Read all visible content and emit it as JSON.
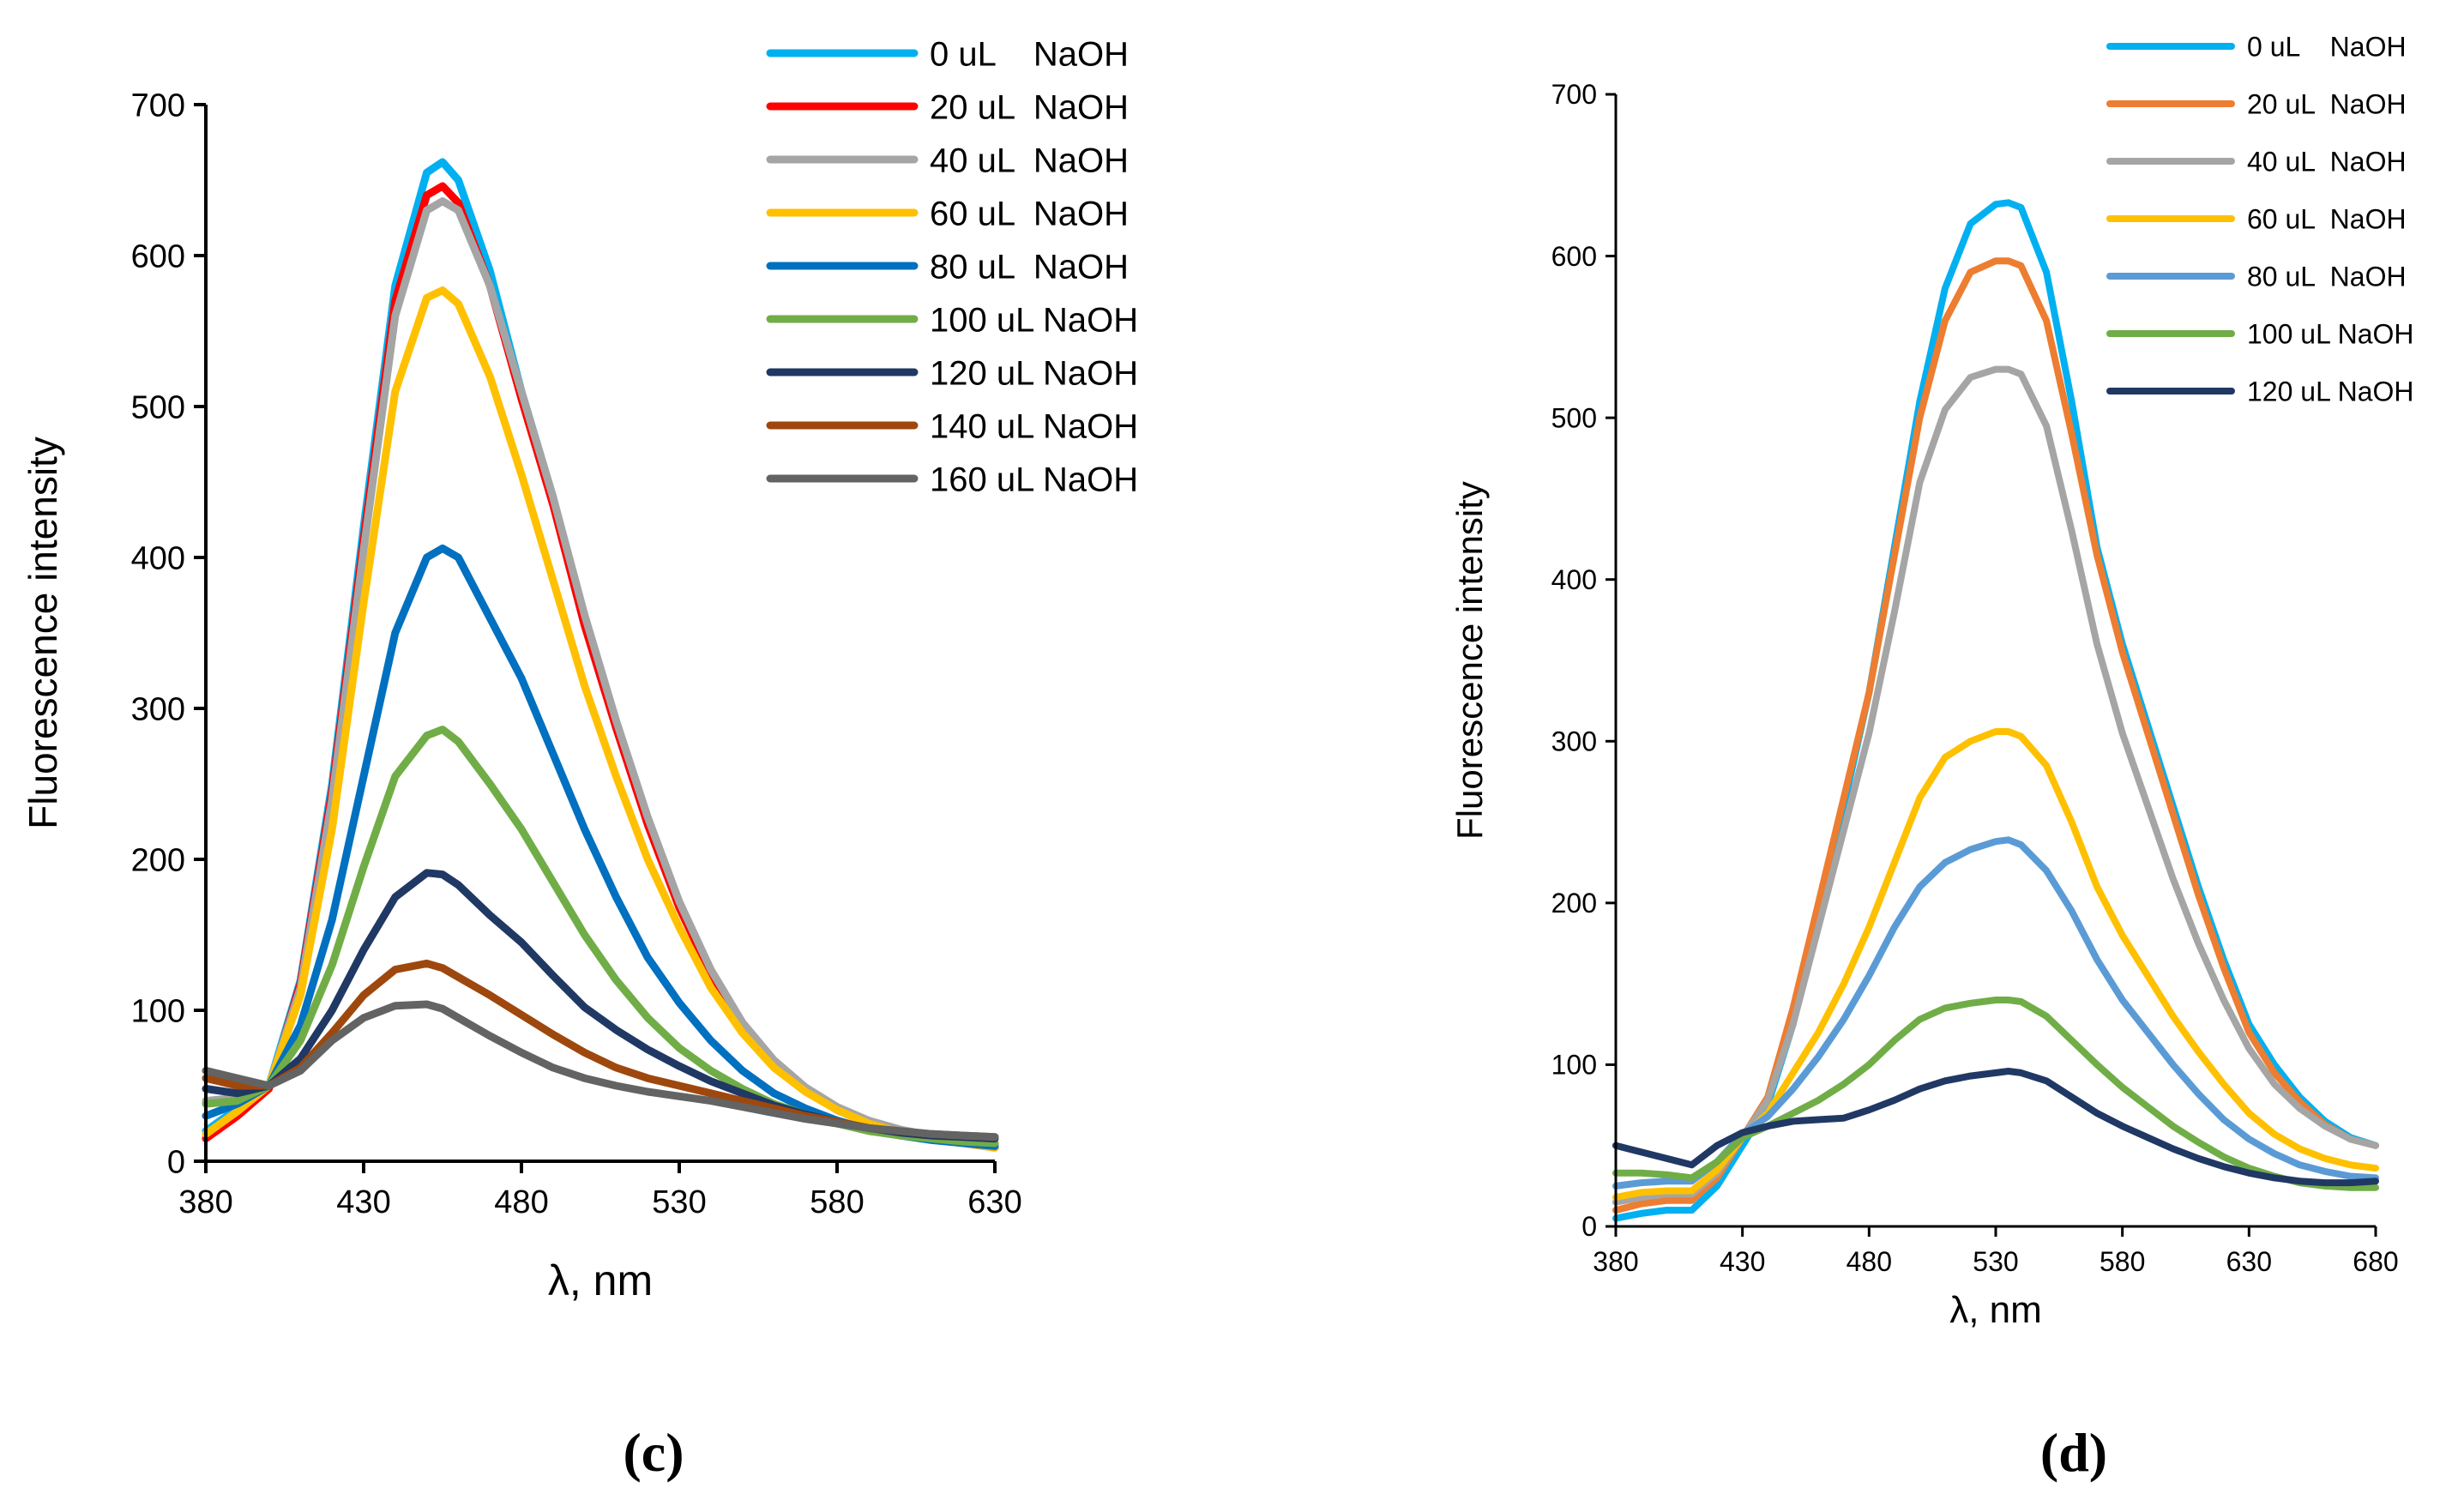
{
  "chart_data": [
    {
      "type": "line",
      "panel_label": "(c)",
      "xlabel": "λ, nm",
      "ylabel": "Fluorescence intensity",
      "xlim": [
        380,
        630
      ],
      "ylim": [
        0,
        700
      ],
      "xticks": [
        380,
        430,
        480,
        530,
        580,
        630
      ],
      "yticks": [
        0,
        100,
        200,
        300,
        400,
        500,
        600,
        700
      ],
      "legend_position": "top-right",
      "series": [
        {
          "name": "0 uL    NaOH",
          "color": "#00B0F0",
          "x": [
            380,
            390,
            400,
            410,
            420,
            430,
            440,
            450,
            455,
            460,
            470,
            480,
            490,
            500,
            510,
            520,
            530,
            540,
            550,
            560,
            570,
            580,
            590,
            600,
            610,
            620,
            630
          ],
          "y": [
            20,
            35,
            50,
            120,
            250,
            420,
            580,
            655,
            662,
            650,
            590,
            510,
            440,
            360,
            290,
            225,
            170,
            125,
            90,
            65,
            48,
            35,
            26,
            20,
            16,
            13,
            10
          ]
        },
        {
          "name": "20 uL  NaOH",
          "color": "#FF0000",
          "x": [
            380,
            390,
            400,
            410,
            420,
            430,
            440,
            450,
            455,
            460,
            470,
            480,
            490,
            500,
            510,
            520,
            530,
            540,
            550,
            560,
            570,
            580,
            590,
            600,
            610,
            620,
            630
          ],
          "y": [
            15,
            30,
            48,
            118,
            245,
            412,
            570,
            640,
            646,
            635,
            580,
            505,
            435,
            355,
            287,
            223,
            168,
            124,
            89,
            64,
            47,
            34,
            25,
            19,
            15,
            12,
            9
          ]
        },
        {
          "name": "40 uL  NaOH",
          "color": "#A5A5A5",
          "x": [
            380,
            390,
            400,
            410,
            420,
            430,
            440,
            450,
            455,
            460,
            470,
            480,
            490,
            500,
            510,
            520,
            530,
            540,
            550,
            560,
            570,
            580,
            590,
            600,
            610,
            620,
            630
          ],
          "y": [
            40,
            42,
            50,
            115,
            240,
            405,
            560,
            630,
            636,
            630,
            580,
            510,
            440,
            362,
            292,
            228,
            172,
            127,
            92,
            67,
            49,
            36,
            27,
            21,
            17,
            14,
            11
          ]
        },
        {
          "name": "60 uL  NaOH",
          "color": "#FFC000",
          "x": [
            380,
            390,
            400,
            410,
            420,
            430,
            440,
            450,
            455,
            460,
            470,
            480,
            490,
            500,
            510,
            520,
            530,
            540,
            550,
            560,
            570,
            580,
            590,
            600,
            610,
            620,
            630
          ],
          "y": [
            18,
            33,
            50,
            110,
            220,
            370,
            510,
            572,
            577,
            568,
            520,
            455,
            385,
            315,
            255,
            200,
            155,
            115,
            85,
            62,
            46,
            34,
            25,
            19,
            15,
            12,
            9
          ]
        },
        {
          "name": "80 uL  NaOH",
          "color": "#0070C0",
          "x": [
            380,
            390,
            400,
            410,
            420,
            430,
            440,
            450,
            455,
            460,
            470,
            480,
            490,
            500,
            510,
            520,
            530,
            540,
            550,
            560,
            570,
            580,
            590,
            600,
            610,
            620,
            630
          ],
          "y": [
            30,
            38,
            50,
            90,
            160,
            255,
            350,
            400,
            406,
            400,
            360,
            320,
            270,
            220,
            175,
            135,
            105,
            80,
            60,
            45,
            35,
            27,
            21,
            17,
            14,
            12,
            10
          ]
        },
        {
          "name": "100 uL NaOH",
          "color": "#70AD47",
          "x": [
            380,
            390,
            400,
            410,
            420,
            430,
            440,
            450,
            455,
            460,
            470,
            480,
            490,
            500,
            510,
            520,
            530,
            540,
            550,
            560,
            570,
            580,
            590,
            600,
            610,
            620,
            630
          ],
          "y": [
            38,
            40,
            50,
            80,
            130,
            195,
            255,
            282,
            286,
            278,
            250,
            220,
            185,
            150,
            120,
            95,
            75,
            60,
            48,
            38,
            31,
            25,
            20,
            17,
            15,
            13,
            12
          ]
        },
        {
          "name": "120 uL NaOH",
          "color": "#203864",
          "x": [
            380,
            390,
            400,
            410,
            420,
            430,
            440,
            450,
            455,
            460,
            470,
            480,
            490,
            500,
            510,
            520,
            530,
            540,
            550,
            560,
            570,
            580,
            590,
            600,
            610,
            620,
            630
          ],
          "y": [
            48,
            45,
            50,
            68,
            100,
            140,
            175,
            191,
            190,
            183,
            163,
            145,
            123,
            102,
            87,
            74,
            63,
            53,
            45,
            37,
            31,
            26,
            22,
            19,
            17,
            16,
            15
          ]
        },
        {
          "name": "140 uL NaOH",
          "color": "#9E480E",
          "x": [
            380,
            390,
            400,
            410,
            420,
            430,
            440,
            450,
            455,
            460,
            470,
            480,
            490,
            500,
            510,
            520,
            530,
            540,
            550,
            560,
            570,
            580,
            590,
            600,
            610,
            620,
            630
          ],
          "y": [
            55,
            50,
            50,
            62,
            85,
            110,
            127,
            131,
            128,
            122,
            110,
            97,
            84,
            72,
            62,
            55,
            50,
            45,
            40,
            35,
            30,
            26,
            22,
            20,
            18,
            17,
            16
          ]
        },
        {
          "name": "160 uL NaOH",
          "color": "#636363",
          "x": [
            380,
            390,
            400,
            410,
            420,
            430,
            440,
            450,
            455,
            460,
            470,
            480,
            490,
            500,
            510,
            520,
            530,
            540,
            550,
            560,
            570,
            580,
            590,
            600,
            610,
            620,
            630
          ],
          "y": [
            60,
            55,
            50,
            60,
            80,
            95,
            103,
            104,
            101,
            95,
            83,
            72,
            62,
            55,
            50,
            46,
            43,
            40,
            36,
            32,
            28,
            25,
            22,
            20,
            18,
            17,
            16
          ]
        }
      ]
    },
    {
      "type": "line",
      "panel_label": "(d)",
      "xlabel": "λ, nm",
      "ylabel": "Fluorescence intensity",
      "xlim": [
        380,
        680
      ],
      "ylim": [
        0,
        700
      ],
      "xticks": [
        380,
        430,
        480,
        530,
        580,
        630,
        680
      ],
      "yticks": [
        0,
        100,
        200,
        300,
        400,
        500,
        600,
        700
      ],
      "legend_position": "top-right",
      "series": [
        {
          "name": "0 uL    NaOH",
          "color": "#00B0F0",
          "x": [
            380,
            390,
            400,
            410,
            420,
            430,
            440,
            450,
            460,
            470,
            480,
            490,
            500,
            510,
            520,
            530,
            535,
            540,
            550,
            560,
            570,
            580,
            590,
            600,
            610,
            620,
            630,
            640,
            650,
            660,
            670,
            680
          ],
          "y": [
            5,
            8,
            10,
            10,
            25,
            50,
            75,
            125,
            190,
            260,
            330,
            420,
            510,
            580,
            620,
            632,
            633,
            630,
            590,
            510,
            420,
            360,
            310,
            260,
            210,
            165,
            125,
            100,
            80,
            65,
            55,
            50
          ]
        },
        {
          "name": "20 uL  NaOH",
          "color": "#ED7D31",
          "x": [
            380,
            390,
            400,
            410,
            420,
            430,
            440,
            450,
            460,
            470,
            480,
            490,
            500,
            510,
            520,
            530,
            535,
            540,
            550,
            560,
            570,
            580,
            590,
            600,
            610,
            620,
            630,
            640,
            650,
            660,
            670,
            680
          ],
          "y": [
            10,
            14,
            16,
            16,
            30,
            55,
            80,
            135,
            200,
            265,
            330,
            415,
            500,
            560,
            590,
            597,
            597,
            594,
            560,
            490,
            415,
            355,
            305,
            255,
            205,
            160,
            120,
            95,
            77,
            63,
            54,
            50
          ]
        },
        {
          "name": "40 uL  NaOH",
          "color": "#A5A5A5",
          "x": [
            380,
            390,
            400,
            410,
            420,
            430,
            440,
            450,
            460,
            470,
            480,
            490,
            500,
            510,
            520,
            530,
            535,
            540,
            550,
            560,
            570,
            580,
            590,
            600,
            610,
            620,
            630,
            640,
            650,
            660,
            670,
            680
          ],
          "y": [
            15,
            18,
            20,
            20,
            33,
            55,
            78,
            125,
            185,
            245,
            305,
            380,
            460,
            505,
            525,
            530,
            530,
            527,
            495,
            430,
            360,
            305,
            260,
            215,
            175,
            140,
            110,
            88,
            73,
            62,
            54,
            50
          ]
        },
        {
          "name": "60 uL  NaOH",
          "color": "#FFC000",
          "x": [
            380,
            390,
            400,
            410,
            420,
            430,
            440,
            450,
            460,
            470,
            480,
            490,
            500,
            510,
            520,
            530,
            535,
            540,
            550,
            560,
            570,
            580,
            590,
            600,
            610,
            620,
            630,
            640,
            650,
            660,
            670,
            680
          ],
          "y": [
            18,
            21,
            22,
            22,
            35,
            55,
            70,
            95,
            120,
            150,
            185,
            225,
            265,
            290,
            300,
            306,
            306,
            303,
            285,
            250,
            210,
            180,
            155,
            130,
            108,
            88,
            70,
            57,
            48,
            42,
            38,
            36
          ]
        },
        {
          "name": "80 uL  NaOH",
          "color": "#5B9BD5",
          "x": [
            380,
            390,
            400,
            410,
            420,
            430,
            440,
            450,
            460,
            470,
            480,
            490,
            500,
            510,
            520,
            530,
            535,
            540,
            550,
            560,
            570,
            580,
            590,
            600,
            610,
            620,
            630,
            640,
            650,
            660,
            670,
            680
          ],
          "y": [
            25,
            27,
            28,
            28,
            40,
            57,
            68,
            85,
            105,
            128,
            155,
            185,
            210,
            225,
            233,
            238,
            239,
            236,
            220,
            195,
            165,
            140,
            120,
            100,
            82,
            66,
            54,
            45,
            38,
            34,
            31,
            30
          ]
        },
        {
          "name": "100 uL NaOH",
          "color": "#70AD47",
          "x": [
            380,
            390,
            400,
            410,
            420,
            430,
            440,
            450,
            460,
            470,
            480,
            490,
            500,
            510,
            520,
            530,
            535,
            540,
            550,
            560,
            570,
            580,
            590,
            600,
            610,
            620,
            630,
            640,
            650,
            660,
            670,
            680
          ],
          "y": [
            33,
            33,
            32,
            30,
            40,
            55,
            62,
            70,
            78,
            88,
            100,
            115,
            128,
            135,
            138,
            140,
            140,
            139,
            130,
            115,
            100,
            86,
            74,
            62,
            52,
            43,
            36,
            31,
            27,
            25,
            24,
            24
          ]
        },
        {
          "name": "120 uL NaOH",
          "color": "#203864",
          "x": [
            380,
            390,
            400,
            410,
            420,
            430,
            440,
            450,
            460,
            470,
            480,
            490,
            500,
            510,
            520,
            530,
            535,
            540,
            550,
            560,
            570,
            580,
            590,
            600,
            610,
            620,
            630,
            640,
            650,
            660,
            670,
            680
          ],
          "y": [
            50,
            46,
            42,
            38,
            50,
            58,
            62,
            65,
            66,
            67,
            72,
            78,
            85,
            90,
            93,
            95,
            96,
            95,
            90,
            80,
            70,
            62,
            55,
            48,
            42,
            37,
            33,
            30,
            28,
            27,
            27,
            28
          ]
        }
      ]
    }
  ]
}
